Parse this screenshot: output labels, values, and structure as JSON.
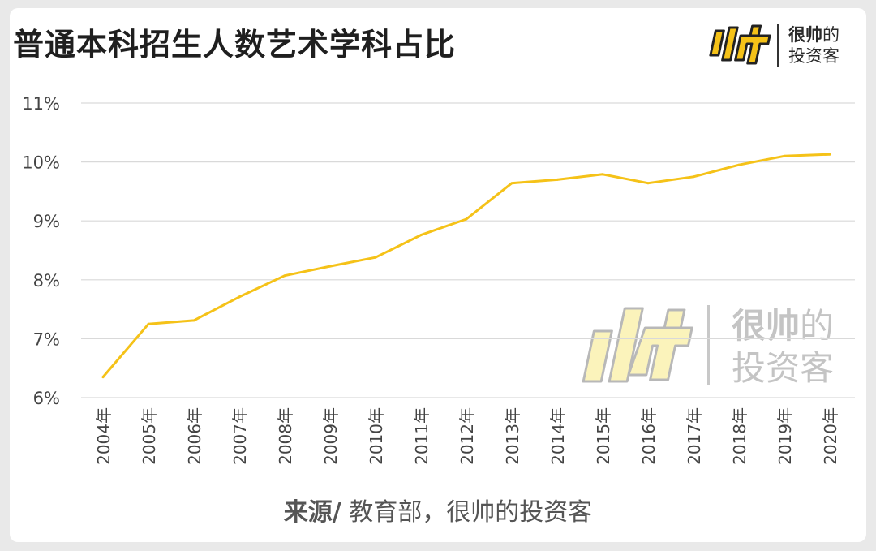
{
  "title": "普通本科招生人数艺术学科占比",
  "brand": {
    "logo_glyph": "帅",
    "name_line1_bold": "很帅",
    "name_line1_rest": "的",
    "name_line2": "投资客"
  },
  "source": {
    "label": "来源/",
    "text": " 教育部，很帅的投资客"
  },
  "colors": {
    "line": "#F5C218",
    "grid": "#d9d9d9",
    "axis_text": "#444444",
    "watermark_fill": "#FBF3B8",
    "watermark_stroke": "#b5b5b5"
  },
  "chart_data": {
    "type": "line",
    "title": "普通本科招生人数艺术学科占比",
    "xlabel": "",
    "ylabel": "",
    "categories": [
      "2004年",
      "2005年",
      "2006年",
      "2007年",
      "2008年",
      "2009年",
      "2010年",
      "2011年",
      "2012年",
      "2013年",
      "2014年",
      "2015年",
      "2016年",
      "2017年",
      "2018年",
      "2019年",
      "2020年"
    ],
    "series": [
      {
        "values": [
          6.35,
          7.25,
          7.31,
          7.71,
          8.07,
          8.23,
          8.38,
          8.76,
          9.03,
          9.64,
          9.7,
          9.79,
          9.64,
          9.75,
          9.95,
          10.1,
          10.13
        ]
      }
    ],
    "ylim": [
      6,
      11
    ],
    "yticks": [
      6,
      7,
      8,
      9,
      10,
      11
    ],
    "ytick_labels": [
      "6%",
      "7%",
      "8%",
      "9%",
      "10%",
      "11%"
    ],
    "grid": true,
    "legend": "none"
  }
}
